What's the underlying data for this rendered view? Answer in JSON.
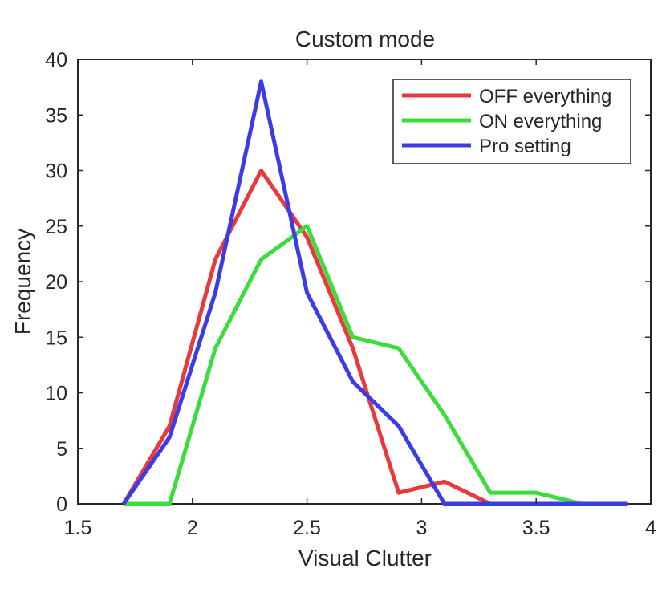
{
  "chart_data": {
    "type": "line",
    "title": "Custom mode",
    "xlabel": "Visual Clutter",
    "ylabel": "Frequency",
    "xlim": [
      1.5,
      4
    ],
    "ylim": [
      0,
      40
    ],
    "xticks": [
      "1.5",
      "2",
      "2.5",
      "3",
      "3.5",
      "4"
    ],
    "yticks": [
      "0",
      "5",
      "10",
      "15",
      "20",
      "25",
      "30",
      "35",
      "40"
    ],
    "grid": false,
    "legend_position": "top-right",
    "x": [
      1.7,
      1.9,
      2.1,
      2.3,
      2.5,
      2.7,
      2.9,
      3.1,
      3.3,
      3.5,
      3.7,
      3.9
    ],
    "series": [
      {
        "name": "OFF everything",
        "color": "#e8393c",
        "values": [
          0,
          7,
          22,
          30,
          24,
          14,
          1,
          2,
          0,
          0,
          0,
          0
        ]
      },
      {
        "name": "ON everything",
        "color": "#3ddc3d",
        "values": [
          0,
          0,
          14,
          22,
          25,
          15,
          14,
          8,
          1,
          1,
          0,
          0
        ]
      },
      {
        "name": "Pro setting",
        "color": "#3c3ce6",
        "values": [
          0,
          6,
          19,
          38,
          19,
          11,
          7,
          0,
          0,
          0,
          0,
          0
        ]
      }
    ]
  }
}
